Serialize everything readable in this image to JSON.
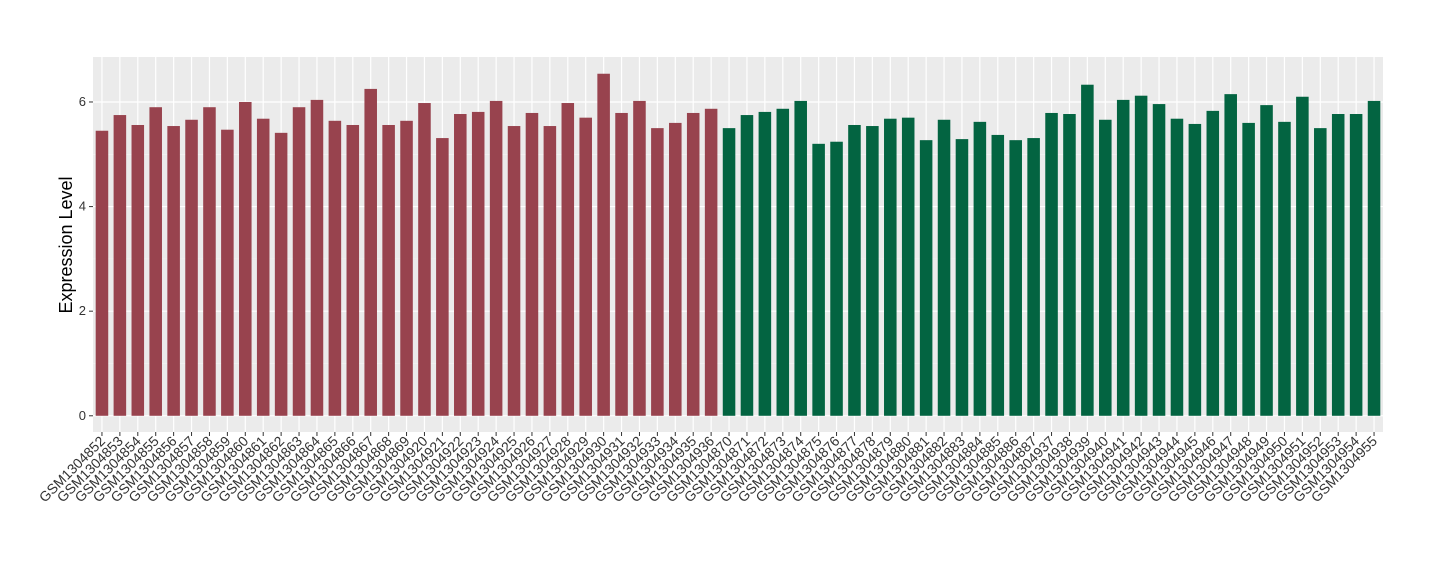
{
  "chart_data": {
    "type": "bar",
    "y_label": "Expression Level",
    "categories": [
      "GSM1304852",
      "GSM1304853",
      "GSM1304854",
      "GSM1304855",
      "GSM1304856",
      "GSM1304857",
      "GSM1304858",
      "GSM1304859",
      "GSM1304860",
      "GSM1304861",
      "GSM1304862",
      "GSM1304863",
      "GSM1304864",
      "GSM1304865",
      "GSM1304866",
      "GSM1304867",
      "GSM1304868",
      "GSM1304869",
      "GSM1304920",
      "GSM1304921",
      "GSM1304922",
      "GSM1304923",
      "GSM1304924",
      "GSM1304925",
      "GSM1304926",
      "GSM1304927",
      "GSM1304928",
      "GSM1304929",
      "GSM1304930",
      "GSM1304931",
      "GSM1304932",
      "GSM1304933",
      "GSM1304934",
      "GSM1304935",
      "GSM1304936",
      "GSM1304870",
      "GSM1304871",
      "GSM1304872",
      "GSM1304873",
      "GSM1304874",
      "GSM1304875",
      "GSM1304876",
      "GSM1304877",
      "GSM1304878",
      "GSM1304879",
      "GSM1304880",
      "GSM1304881",
      "GSM1304882",
      "GSM1304883",
      "GSM1304884",
      "GSM1304885",
      "GSM1304886",
      "GSM1304887",
      "GSM1304937",
      "GSM1304938",
      "GSM1304939",
      "GSM1304940",
      "GSM1304941",
      "GSM1304942",
      "GSM1304943",
      "GSM1304944",
      "GSM1304945",
      "GSM1304946",
      "GSM1304947",
      "GSM1304948",
      "GSM1304949",
      "GSM1304950",
      "GSM1304951",
      "GSM1304952",
      "GSM1304953",
      "GSM1304954",
      "GSM1304955"
    ],
    "values": [
      5.45,
      5.75,
      5.56,
      5.9,
      5.54,
      5.66,
      5.9,
      5.47,
      6.0,
      5.68,
      5.41,
      5.9,
      6.04,
      5.64,
      5.56,
      6.25,
      5.56,
      5.64,
      5.98,
      5.31,
      5.77,
      5.81,
      6.02,
      5.54,
      5.79,
      5.54,
      5.98,
      5.7,
      6.54,
      5.79,
      6.02,
      5.5,
      5.6,
      5.79,
      5.87,
      5.5,
      5.75,
      5.81,
      5.87,
      6.02,
      5.2,
      5.24,
      5.56,
      5.54,
      5.68,
      5.7,
      5.27,
      5.66,
      5.29,
      5.62,
      5.37,
      5.27,
      5.31,
      5.79,
      5.77,
      6.33,
      5.66,
      6.04,
      6.12,
      5.96,
      5.68,
      5.58,
      5.83,
      6.15,
      5.6,
      5.94,
      5.62,
      6.1,
      5.5,
      5.77,
      5.77,
      6.02
    ],
    "colors": [
      "#98434e",
      "#98434e",
      "#98434e",
      "#98434e",
      "#98434e",
      "#98434e",
      "#98434e",
      "#98434e",
      "#98434e",
      "#98434e",
      "#98434e",
      "#98434e",
      "#98434e",
      "#98434e",
      "#98434e",
      "#98434e",
      "#98434e",
      "#98434e",
      "#98434e",
      "#98434e",
      "#98434e",
      "#98434e",
      "#98434e",
      "#98434e",
      "#98434e",
      "#98434e",
      "#98434e",
      "#98434e",
      "#98434e",
      "#98434e",
      "#98434e",
      "#98434e",
      "#98434e",
      "#98434e",
      "#98434e",
      "#036441",
      "#036441",
      "#036441",
      "#036441",
      "#036441",
      "#036441",
      "#036441",
      "#036441",
      "#036441",
      "#036441",
      "#036441",
      "#036441",
      "#036441",
      "#036441",
      "#036441",
      "#036441",
      "#036441",
      "#036441",
      "#036441",
      "#036441",
      "#036441",
      "#036441",
      "#036441",
      "#036441",
      "#036441",
      "#036441",
      "#036441",
      "#036441",
      "#036441",
      "#036441",
      "#036441",
      "#036441",
      "#036441",
      "#036441",
      "#036441",
      "#036441",
      "#036441"
    ],
    "ylim": [
      -0.31,
      6.86
    ],
    "yticks": [
      0,
      2,
      4,
      6
    ],
    "grid": true
  }
}
